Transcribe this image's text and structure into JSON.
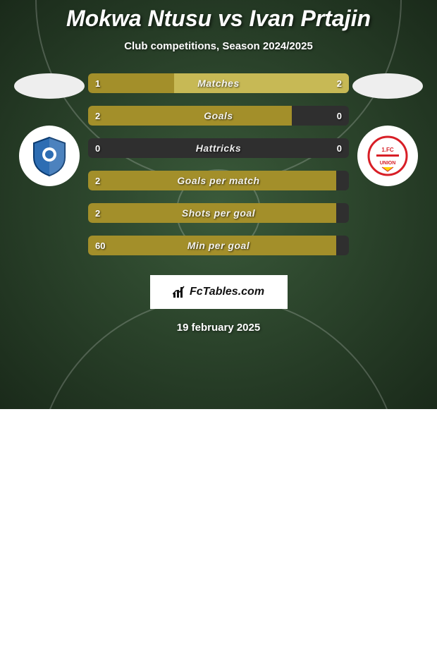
{
  "title": "Mokwa Ntusu vs Ivan Prtajin",
  "subtitle": "Club competitions, Season 2024/2025",
  "date": "19 february 2025",
  "brand": "FcTables.com",
  "colors": {
    "left_bar": "#a38f2a",
    "right_bar": "#c7b955",
    "bar_bg": "#2f2f2f",
    "bg_center": "#3a5a3a",
    "bg_edge": "#1a2a1a"
  },
  "player_left": {
    "club": "TSG 1899 Hoffenheim",
    "badge_shape": "shield",
    "badge_primary": "#2d6db3",
    "badge_secondary": "#ffffff"
  },
  "player_right": {
    "club": "1. FC Union Berlin",
    "badge_shape": "circle",
    "badge_primary": "#d81e26",
    "badge_secondary": "#ffd200"
  },
  "rows": [
    {
      "label": "Matches",
      "left_val": "1",
      "right_val": "2",
      "left_pct": 33,
      "right_pct": 67
    },
    {
      "label": "Goals",
      "left_val": "2",
      "right_val": "0",
      "left_pct": 78,
      "right_pct": 0
    },
    {
      "label": "Hattricks",
      "left_val": "0",
      "right_val": "0",
      "left_pct": 0,
      "right_pct": 0
    },
    {
      "label": "Goals per match",
      "left_val": "2",
      "right_val": "",
      "left_pct": 95,
      "right_pct": 0
    },
    {
      "label": "Shots per goal",
      "left_val": "2",
      "right_val": "",
      "left_pct": 95,
      "right_pct": 0
    },
    {
      "label": "Min per goal",
      "left_val": "60",
      "right_val": "",
      "left_pct": 95,
      "right_pct": 0
    }
  ]
}
